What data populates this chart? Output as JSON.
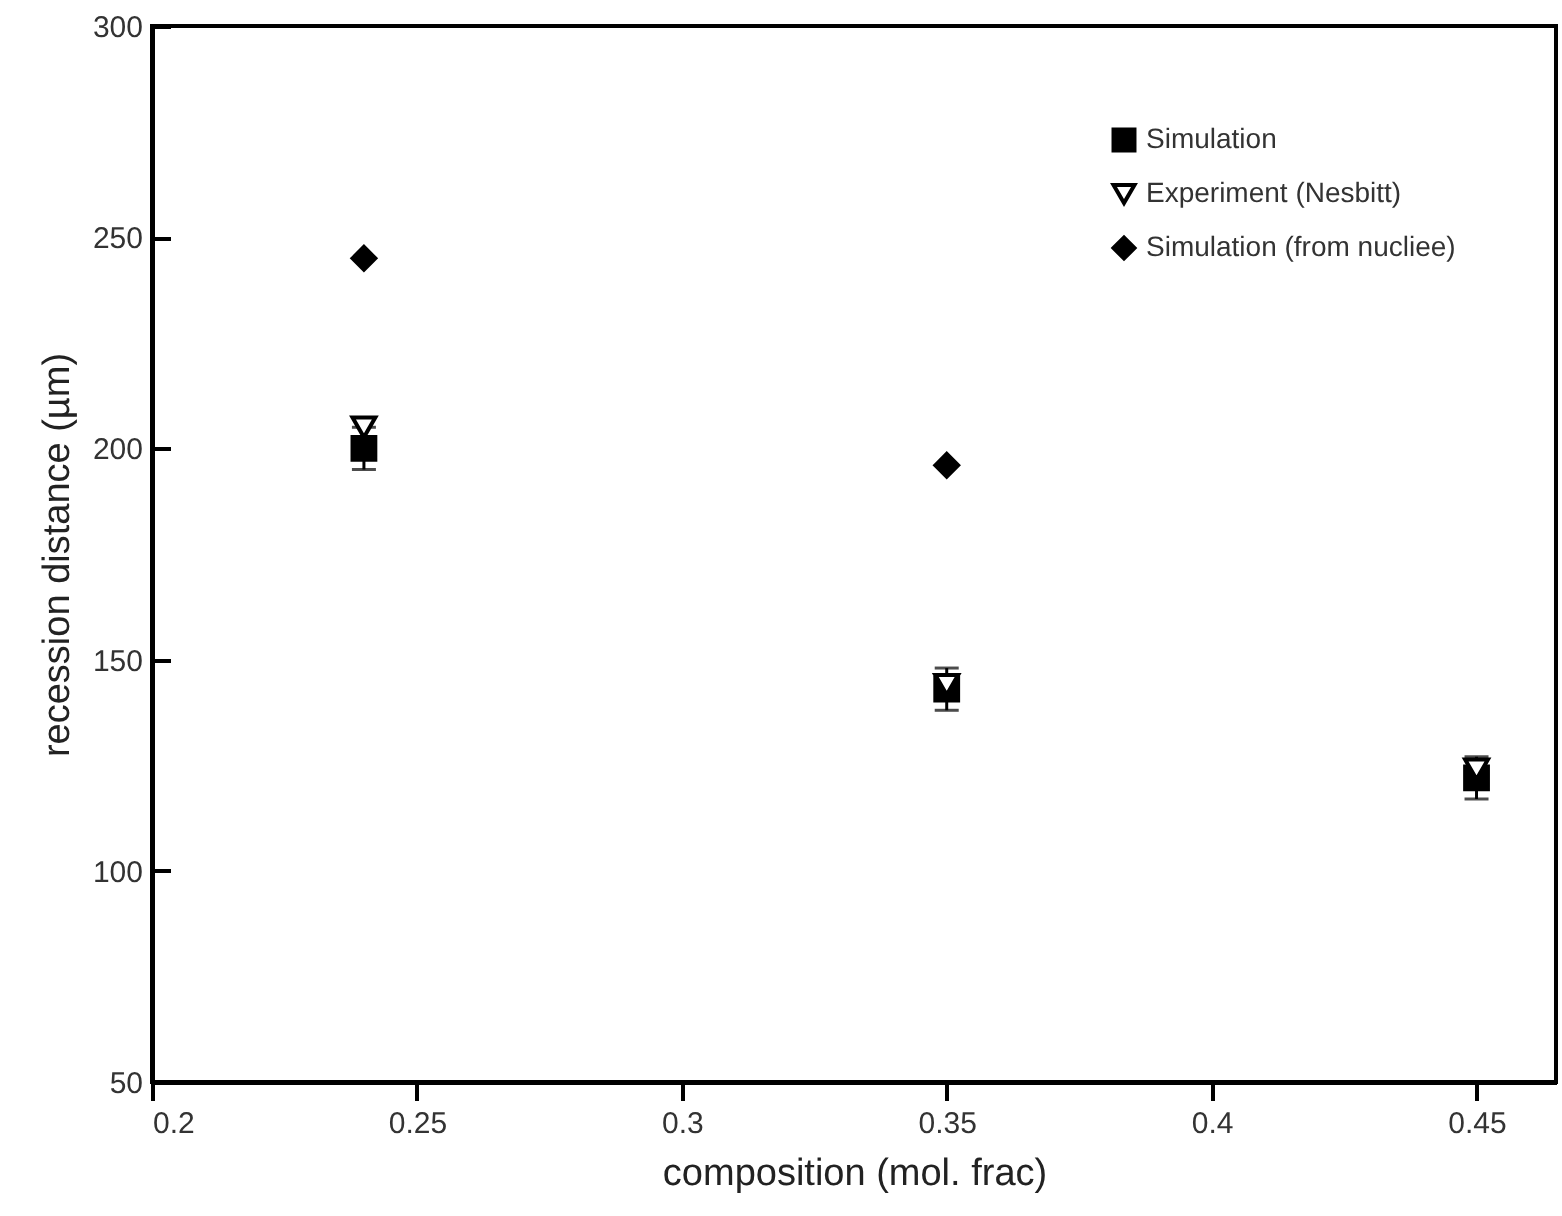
{
  "chart_data": {
    "type": "scatter",
    "xlabel": "composition (mol. frac)",
    "ylabel": "recession distance (µm)",
    "xlim": [
      0.2,
      0.465
    ],
    "xticks": [
      0.2,
      0.25,
      0.3,
      0.35,
      0.4,
      0.45
    ],
    "ylim": [
      50,
      300
    ],
    "yticks": [
      50,
      100,
      150,
      200,
      250,
      300
    ],
    "legend": "top right",
    "grid": false,
    "series": [
      {
        "name": "Simulation",
        "color": "#000000",
        "marker": "square",
        "x": [
          0.24,
          0.35,
          0.45
        ],
        "values": [
          200,
          143,
          122
        ],
        "errors": [
          5,
          5,
          5
        ]
      },
      {
        "name": "Experiment (Nesbitt)",
        "color": "#000000",
        "marker": "triangle",
        "x": [
          0.24,
          0.35,
          0.45
        ],
        "values": [
          205,
          144,
          124
        ]
      },
      {
        "name": "Simulation (from nucliee)",
        "color": "#000000",
        "marker": "diamond",
        "x": [
          0.24,
          0.35
        ],
        "values": [
          245,
          196
        ]
      }
    ]
  }
}
